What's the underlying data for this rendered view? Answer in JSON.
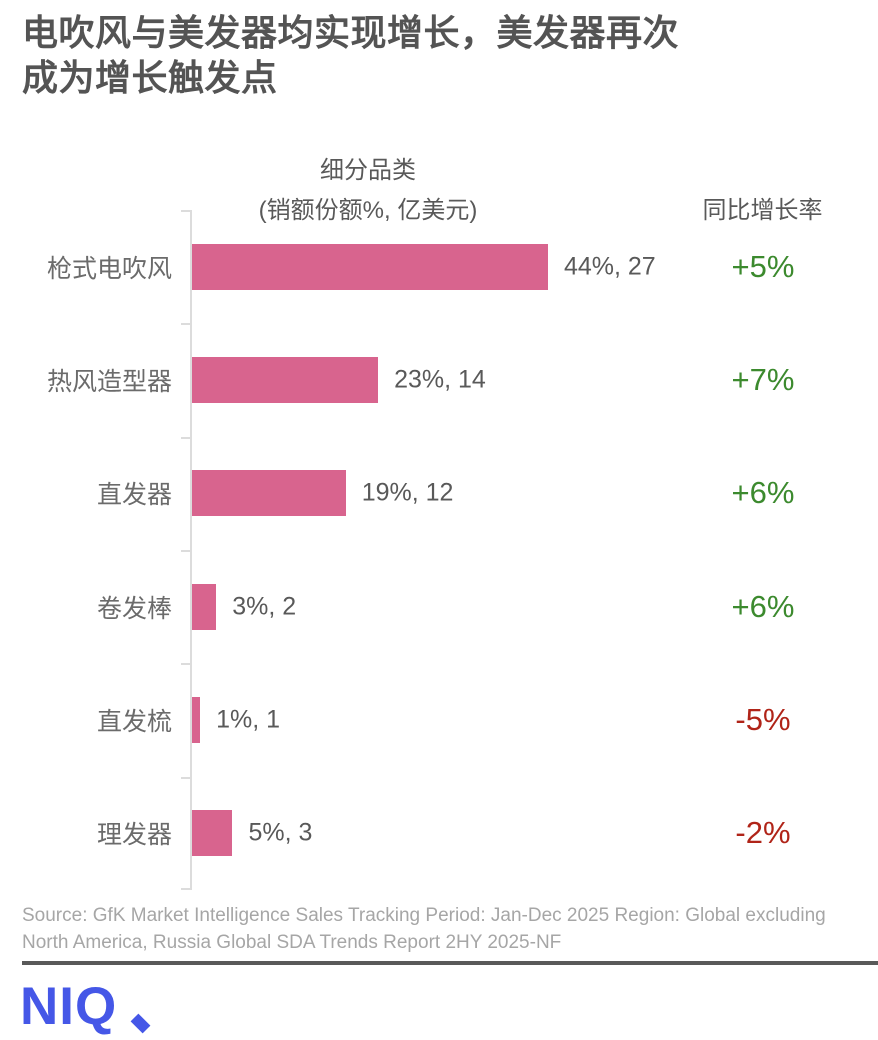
{
  "title": {
    "line1": "电吹风与美发器均实现增长，美发器再次",
    "line2": "成为增长触发点"
  },
  "chart_data": {
    "type": "bar",
    "orientation": "horizontal",
    "group_header": "细分品类",
    "group_subheader": "(销额份额%, 亿美元)",
    "growth_header": "同比增长率",
    "categories": [
      "枪式电吹风",
      "热风造型器",
      "直发器",
      "卷发棒",
      "直发梳",
      "理发器"
    ],
    "series": [
      {
        "name": "销额份额%",
        "values": [
          44,
          23,
          19,
          3,
          1,
          5
        ]
      },
      {
        "name": "销额(亿美元)",
        "values": [
          27,
          14,
          12,
          2,
          1,
          3
        ]
      },
      {
        "name": "同比增长率",
        "values": [
          "+5%",
          "+7%",
          "+6%",
          "+6%",
          "-5%",
          "-2%"
        ]
      }
    ],
    "value_labels": [
      "44%, 27",
      "23%, 14",
      "19%, 12",
      "3%, 2",
      "1%, 1",
      "5%, 3"
    ],
    "legend_position": "none",
    "grid": false
  },
  "colors": {
    "bar": "#d8648e",
    "growth_positive": "#3c8a2e",
    "growth_negative": "#b02418",
    "axis": "#dcdcdc",
    "title_text": "#545454",
    "category_text": "#6b6b6b",
    "value_text": "#595959",
    "source_text": "#a6a6a6",
    "logo": "#4557e7",
    "divider": "#595959"
  },
  "footer": {
    "source": "Source: GfK Market Intelligence Sales Tracking Period: Jan-Dec 2025 Region: Global excluding North America, Russia Global SDA Trends Report 2HY 2025-NF",
    "logo_text": "NIQ"
  }
}
